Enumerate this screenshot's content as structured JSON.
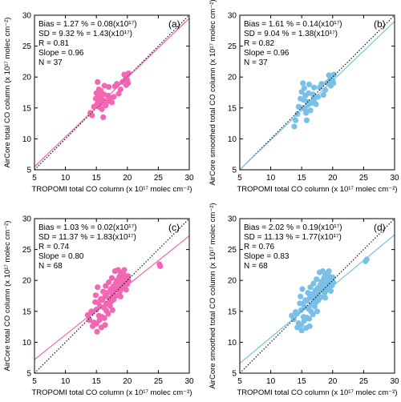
{
  "colors": {
    "pink": "#f266b3",
    "blue": "#78c0e8"
  },
  "axis_labels": {
    "x": "TROPOMI total CO column (x 10¹⁷ molec cm⁻²)",
    "y_a": "AirCore total CO column (x 10¹⁷ molec cm⁻²)",
    "y_b": "AirCore smoothed total CO column (x 10¹⁷ molec cm⁻²)",
    "y_c": "AirCore total CO column (x 10¹⁷ molec cm⁻²)",
    "y_d": "AirCore smoothed total CO column (x 10¹⁷ molec cm⁻²)"
  },
  "panels": [
    {
      "tag": "(a)",
      "stats": [
        "Bias = 1.27 % = 0.08(x10¹⁷)",
        "SD = 9.32 % = 1.43(x10¹⁷)",
        "R = 0.81",
        "Slope = 0.96",
        "N = 37"
      ]
    },
    {
      "tag": "(b)",
      "stats": [
        "Bias = 1.61 % = 0.14(x10¹⁷)",
        "SD = 9.04 % = 1.38(x10¹⁷)",
        "R = 0.82",
        "Slope = 0.96",
        "N = 37"
      ]
    },
    {
      "tag": "(c)",
      "stats": [
        "Bias = 1.03 % = 0.02(x10¹⁷)",
        "SD = 11.37 % = 1.83(x10¹⁷)",
        "R = 0.74",
        "Slope = 0.80",
        "N = 68"
      ]
    },
    {
      "tag": "(d)",
      "stats": [
        "Bias = 2.02 % = 0.19(x10¹⁷)",
        "SD = 11.13 % = 1.77(x10¹⁷)",
        "R = 0.76",
        "Slope = 0.83",
        "N = 68"
      ]
    }
  ],
  "chart_data": [
    {
      "type": "scatter",
      "xlim": [
        5,
        30
      ],
      "ylim": [
        5,
        30
      ],
      "xticks": [
        5,
        10,
        15,
        20,
        25,
        30
      ],
      "yticks": [
        5,
        10,
        15,
        20,
        25,
        30
      ],
      "color": "#f266b3",
      "fit": {
        "x": [
          5,
          30
        ],
        "y": [
          5.5,
          29.5
        ]
      },
      "one_to_one": true,
      "points": [
        [
          14.0,
          14.2
        ],
        [
          14.3,
          13.8
        ],
        [
          14.6,
          15.2
        ],
        [
          14.9,
          16.5
        ],
        [
          15.0,
          17.4
        ],
        [
          15.1,
          15.6
        ],
        [
          15.2,
          19.2
        ],
        [
          15.3,
          16.1
        ],
        [
          15.4,
          18.0
        ],
        [
          15.5,
          15.1
        ],
        [
          15.6,
          16.9
        ],
        [
          15.7,
          17.8
        ],
        [
          15.8,
          15.8
        ],
        [
          15.9,
          14.8
        ],
        [
          16.0,
          16.3
        ],
        [
          16.1,
          13.5
        ],
        [
          16.2,
          17.2
        ],
        [
          16.3,
          18.6
        ],
        [
          16.5,
          15.4
        ],
        [
          16.7,
          16.0
        ],
        [
          16.9,
          17.0
        ],
        [
          17.2,
          16.6
        ],
        [
          17.5,
          15.9
        ],
        [
          17.8,
          16.8
        ],
        [
          18.0,
          18.5
        ],
        [
          18.3,
          18.9
        ],
        [
          18.6,
          17.3
        ],
        [
          18.9,
          18.0
        ],
        [
          19.2,
          19.2
        ],
        [
          19.5,
          20.4
        ],
        [
          19.7,
          19.7
        ],
        [
          19.9,
          20.2
        ],
        [
          20.0,
          19.5
        ],
        [
          20.1,
          19.0
        ],
        [
          20.2,
          20.6
        ],
        [
          19.8,
          18.7
        ],
        [
          17.0,
          18.4
        ]
      ]
    },
    {
      "type": "scatter",
      "xlim": [
        5,
        30
      ],
      "ylim": [
        5,
        30
      ],
      "xticks": [
        5,
        10,
        15,
        20,
        25,
        30
      ],
      "yticks": [
        5,
        10,
        15,
        20,
        25,
        30
      ],
      "color": "#78c0e8",
      "fit": {
        "x": [
          5,
          30
        ],
        "y": [
          5.0,
          29.0
        ]
      },
      "one_to_one": true,
      "points": [
        [
          13.8,
          12.0
        ],
        [
          14.0,
          13.0
        ],
        [
          14.3,
          14.0
        ],
        [
          14.5,
          15.2
        ],
        [
          14.8,
          16.5
        ],
        [
          15.0,
          17.6
        ],
        [
          15.1,
          15.0
        ],
        [
          15.2,
          19.0
        ],
        [
          15.3,
          16.3
        ],
        [
          15.4,
          18.2
        ],
        [
          15.5,
          14.8
        ],
        [
          15.6,
          17.0
        ],
        [
          15.7,
          14.2
        ],
        [
          15.8,
          13.0
        ],
        [
          15.9,
          16.0
        ],
        [
          16.0,
          15.5
        ],
        [
          16.1,
          17.4
        ],
        [
          16.2,
          18.8
        ],
        [
          16.4,
          14.6
        ],
        [
          16.6,
          15.8
        ],
        [
          16.8,
          17.2
        ],
        [
          17.0,
          16.4
        ],
        [
          17.3,
          15.6
        ],
        [
          17.6,
          16.8
        ],
        [
          17.9,
          18.3
        ],
        [
          18.2,
          18.9
        ],
        [
          18.5,
          17.1
        ],
        [
          18.8,
          17.9
        ],
        [
          19.1,
          19.1
        ],
        [
          19.4,
          20.3
        ],
        [
          19.6,
          19.6
        ],
        [
          19.8,
          20.0
        ],
        [
          20.0,
          19.4
        ],
        [
          20.1,
          19.0
        ],
        [
          20.2,
          20.4
        ],
        [
          19.7,
          18.6
        ],
        [
          17.0,
          18.3
        ]
      ]
    },
    {
      "type": "scatter",
      "xlim": [
        5,
        30
      ],
      "ylim": [
        5,
        30
      ],
      "xticks": [
        5,
        10,
        15,
        20,
        25,
        30
      ],
      "yticks": [
        5,
        10,
        15,
        20,
        25,
        30
      ],
      "color": "#f266b3",
      "fit": {
        "x": [
          5,
          30
        ],
        "y": [
          7.2,
          27.2
        ]
      },
      "one_to_one": true,
      "points": [
        [
          13.6,
          14.4
        ],
        [
          13.9,
          13.6
        ],
        [
          14.2,
          15.0
        ],
        [
          14.4,
          12.6
        ],
        [
          14.6,
          13.2
        ],
        [
          14.8,
          16.5
        ],
        [
          14.9,
          17.6
        ],
        [
          15.0,
          15.3
        ],
        [
          15.1,
          11.7
        ],
        [
          15.2,
          18.9
        ],
        [
          15.3,
          16.4
        ],
        [
          15.4,
          14.3
        ],
        [
          15.5,
          13.6
        ],
        [
          15.6,
          15.8
        ],
        [
          15.7,
          17.0
        ],
        [
          15.8,
          12.4
        ],
        [
          15.9,
          14.1
        ],
        [
          16.0,
          16.8
        ],
        [
          16.1,
          18.2
        ],
        [
          16.2,
          15.6
        ],
        [
          16.3,
          13.9
        ],
        [
          16.4,
          17.4
        ],
        [
          16.5,
          19.1
        ],
        [
          16.6,
          15.1
        ],
        [
          16.7,
          16.2
        ],
        [
          16.8,
          18.0
        ],
        [
          16.9,
          14.6
        ],
        [
          17.0,
          19.7
        ],
        [
          17.1,
          17.1
        ],
        [
          17.2,
          15.9
        ],
        [
          17.3,
          18.6
        ],
        [
          17.4,
          16.6
        ],
        [
          17.5,
          20.4
        ],
        [
          17.6,
          17.8
        ],
        [
          17.7,
          19.0
        ],
        [
          17.8,
          16.9
        ],
        [
          17.9,
          18.4
        ],
        [
          18.0,
          21.5
        ],
        [
          18.1,
          19.5
        ],
        [
          18.2,
          17.5
        ],
        [
          18.3,
          20.0
        ],
        [
          18.4,
          18.8
        ],
        [
          18.5,
          21.7
        ],
        [
          18.6,
          19.3
        ],
        [
          18.7,
          20.6
        ],
        [
          18.8,
          18.2
        ],
        [
          18.9,
          21.0
        ],
        [
          19.0,
          19.8
        ],
        [
          19.1,
          20.3
        ],
        [
          19.2,
          18.7
        ],
        [
          19.3,
          21.4
        ],
        [
          19.4,
          20.0
        ],
        [
          19.5,
          19.2
        ],
        [
          19.6,
          20.8
        ],
        [
          19.7,
          19.6
        ],
        [
          19.8,
          18.5
        ],
        [
          19.9,
          20.1
        ],
        [
          20.0,
          19.4
        ],
        [
          20.1,
          20.7
        ],
        [
          20.2,
          19.9
        ],
        [
          14.3,
          14.8
        ],
        [
          15.0,
          13.0
        ],
        [
          16.4,
          12.8
        ],
        [
          17.6,
          15.2
        ],
        [
          18.9,
          17.4
        ],
        [
          19.5,
          21.7
        ],
        [
          25.2,
          22.6
        ],
        [
          25.3,
          22.3
        ]
      ]
    },
    {
      "type": "scatter",
      "xlim": [
        5,
        30
      ],
      "ylim": [
        5,
        30
      ],
      "xticks": [
        5,
        10,
        15,
        20,
        25,
        30
      ],
      "yticks": [
        5,
        10,
        15,
        20,
        25,
        30
      ],
      "color": "#78c0e8",
      "fit": {
        "x": [
          5,
          30
        ],
        "y": [
          6.6,
          27.4
        ]
      },
      "one_to_one": true,
      "points": [
        [
          13.4,
          14.3
        ],
        [
          13.7,
          13.7
        ],
        [
          14.0,
          14.9
        ],
        [
          14.3,
          12.4
        ],
        [
          14.5,
          13.1
        ],
        [
          14.7,
          16.3
        ],
        [
          14.8,
          17.4
        ],
        [
          14.9,
          15.2
        ],
        [
          15.0,
          11.9
        ],
        [
          15.1,
          18.6
        ],
        [
          15.2,
          16.2
        ],
        [
          15.3,
          14.1
        ],
        [
          15.4,
          13.5
        ],
        [
          15.5,
          15.7
        ],
        [
          15.6,
          16.8
        ],
        [
          15.7,
          12.3
        ],
        [
          15.8,
          14.0
        ],
        [
          15.9,
          16.7
        ],
        [
          16.0,
          18.0
        ],
        [
          16.1,
          15.4
        ],
        [
          16.2,
          13.8
        ],
        [
          16.3,
          17.2
        ],
        [
          16.4,
          18.9
        ],
        [
          16.5,
          15.0
        ],
        [
          16.6,
          16.1
        ],
        [
          16.7,
          17.8
        ],
        [
          16.8,
          14.5
        ],
        [
          16.9,
          19.5
        ],
        [
          17.0,
          17.0
        ],
        [
          17.1,
          15.8
        ],
        [
          17.2,
          18.4
        ],
        [
          17.3,
          16.5
        ],
        [
          17.4,
          20.2
        ],
        [
          17.5,
          17.6
        ],
        [
          17.6,
          18.8
        ],
        [
          17.7,
          16.8
        ],
        [
          17.8,
          18.2
        ],
        [
          17.9,
          21.3
        ],
        [
          18.0,
          19.3
        ],
        [
          18.1,
          17.3
        ],
        [
          18.2,
          19.8
        ],
        [
          18.3,
          18.6
        ],
        [
          18.4,
          21.5
        ],
        [
          18.5,
          19.1
        ],
        [
          18.6,
          20.4
        ],
        [
          18.7,
          18.0
        ],
        [
          18.8,
          20.8
        ],
        [
          18.9,
          19.6
        ],
        [
          19.0,
          20.1
        ],
        [
          19.1,
          18.5
        ],
        [
          19.2,
          21.2
        ],
        [
          19.3,
          19.8
        ],
        [
          19.4,
          19.0
        ],
        [
          19.5,
          20.6
        ],
        [
          19.6,
          19.4
        ],
        [
          19.7,
          18.3
        ],
        [
          19.8,
          19.9
        ],
        [
          19.9,
          19.2
        ],
        [
          20.0,
          20.5
        ],
        [
          20.1,
          19.7
        ],
        [
          14.2,
          14.6
        ],
        [
          14.9,
          12.8
        ],
        [
          16.3,
          12.6
        ],
        [
          17.5,
          15.0
        ],
        [
          18.8,
          17.2
        ],
        [
          19.4,
          21.5
        ],
        [
          25.5,
          23.4
        ],
        [
          25.3,
          23.1
        ]
      ]
    }
  ]
}
